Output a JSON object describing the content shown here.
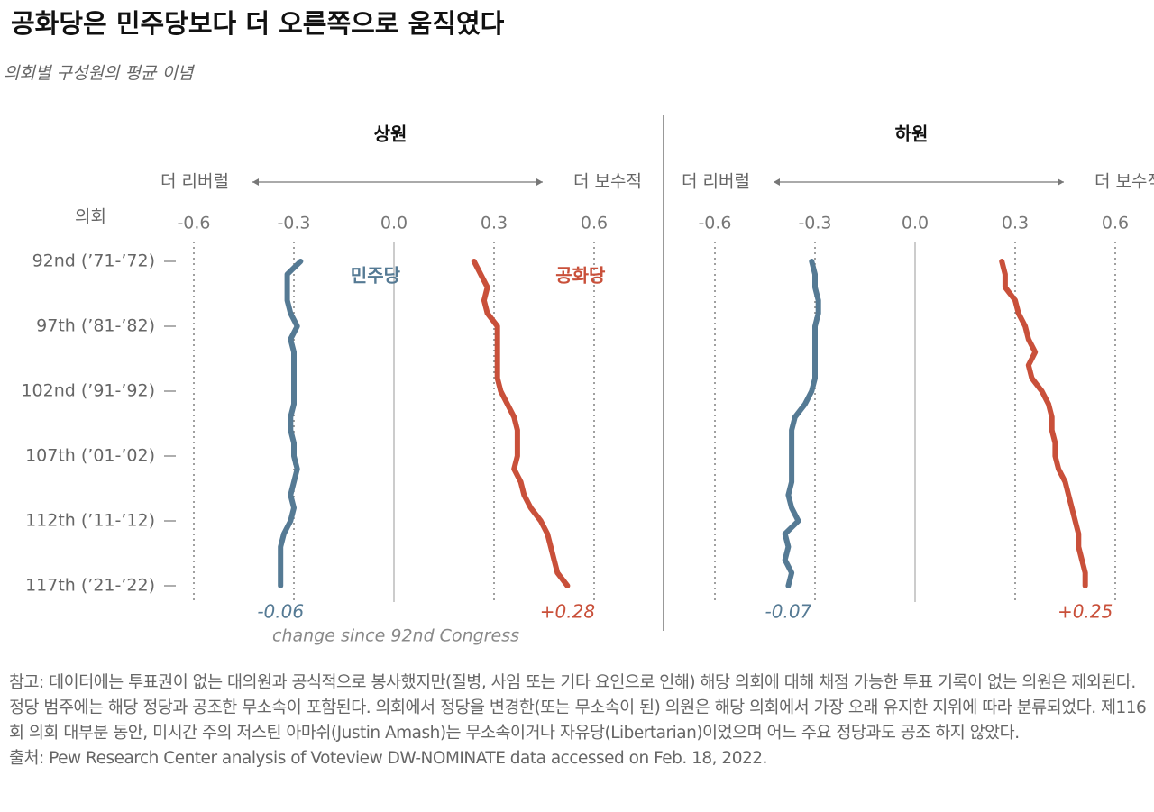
{
  "title": "공화당은 민주당보다 더 오른쪽으로 움직였다",
  "subtitle": "의회별 구성원의 평균 이념",
  "note": "참고: 데이터에는 투표권이 없는 대의원과 공식적으로 봉사했지만(질병, 사임 또는 기타 요인으로 인해) 해당 의회에 대해 채점 가능한 투표 기록이 없는 의원은 제외된다. 정당 범주에는 해당 정당과 공조한 무소속이 포함된다. 의회에서 정당을 변경한(또는 무소속이 된) 의원은 해당 의회에서 가장 오래 유지한 지위에 따라 분류되었다. 제116회 의회 대부분 동안, 미시간 주의 저스틴 아마쉬(Justin Amash)는 무소속이거나 자유당(Libertarian)이었으며 어느 주요 정당과도 공조 하지 않았다.",
  "source": "출처: Pew Research Center analysis of Voteview DW-NOMINATE data accessed on Feb. 18, 2022.",
  "chart_data": [
    {
      "type": "line",
      "orientation": "horizontal",
      "title": "상원",
      "y_label": "의회",
      "left_label": "더 리버럴",
      "right_label": "더 보수적",
      "annotation": "change since 92nd Congress",
      "categories": [
        "92nd (’71-’72)",
        null,
        null,
        null,
        null,
        "97th (’81-’82)",
        null,
        null,
        null,
        null,
        "102nd (’91-’92)",
        null,
        null,
        null,
        null,
        "107th (’01-’02)",
        null,
        null,
        null,
        null,
        "112th (’11-’12)",
        null,
        null,
        null,
        null,
        "117th (’21-’22)"
      ],
      "xlim": [
        -0.6,
        0.6
      ],
      "xticks": [
        -0.6,
        -0.3,
        {
          "value": 0,
          "label": "0.0"
        },
        0.3,
        0.6
      ],
      "grid": true,
      "series": [
        {
          "name": "민주당",
          "color": "#557a94",
          "change_label": "-0.06",
          "values": [
            -0.28,
            -0.32,
            -0.32,
            -0.32,
            -0.31,
            -0.29,
            -0.31,
            -0.3,
            -0.3,
            -0.3,
            -0.3,
            -0.3,
            -0.31,
            -0.31,
            -0.3,
            -0.3,
            -0.29,
            -0.3,
            -0.31,
            -0.3,
            -0.31,
            -0.33,
            -0.34,
            -0.34,
            -0.34,
            -0.34
          ]
        },
        {
          "name": "공화당",
          "color": "#c9503a",
          "change_label": "+0.28",
          "values": [
            0.24,
            0.26,
            0.28,
            0.27,
            0.28,
            0.31,
            0.31,
            0.31,
            0.31,
            0.31,
            0.32,
            0.34,
            0.36,
            0.37,
            0.37,
            0.37,
            0.36,
            0.38,
            0.39,
            0.41,
            0.44,
            0.46,
            0.47,
            0.48,
            0.49,
            0.52
          ]
        }
      ]
    },
    {
      "type": "line",
      "orientation": "horizontal",
      "title": "하원",
      "left_label": "더 리버럴",
      "right_label": "더 보수적",
      "xlim": [
        -0.6,
        0.6
      ],
      "xticks": [
        -0.6,
        -0.3,
        {
          "value": 0,
          "label": "0.0"
        },
        0.3,
        0.6
      ],
      "grid": true,
      "series": [
        {
          "color": "#557a94",
          "change_label": "-0.07",
          "values": [
            -0.31,
            -0.3,
            -0.3,
            -0.29,
            -0.29,
            -0.3,
            -0.3,
            -0.3,
            -0.3,
            -0.3,
            -0.31,
            -0.33,
            -0.36,
            -0.37,
            -0.37,
            -0.37,
            -0.37,
            -0.37,
            -0.38,
            -0.37,
            -0.35,
            -0.39,
            -0.38,
            -0.39,
            -0.37,
            -0.38
          ]
        },
        {
          "color": "#c9503a",
          "change_label": "+0.25",
          "values": [
            0.26,
            0.27,
            0.27,
            0.3,
            0.31,
            0.33,
            0.34,
            0.36,
            0.34,
            0.35,
            0.38,
            0.4,
            0.41,
            0.41,
            0.42,
            0.42,
            0.43,
            0.45,
            0.46,
            0.47,
            0.48,
            0.49,
            0.49,
            0.5,
            0.51,
            0.51
          ]
        }
      ]
    }
  ]
}
